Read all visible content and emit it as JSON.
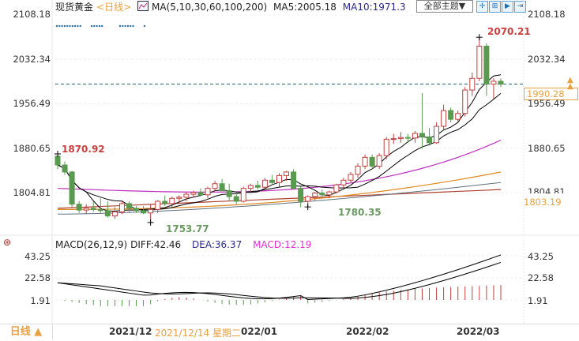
{
  "header": {
    "instrument": "现货黄金",
    "period": "<日线>",
    "ma_params": "MA(5,10,30,60,100,200)",
    "ma5": "MA5:2005.18",
    "ma10": "MA10:1971.3",
    "theme_select": "全部主题▼",
    "tools": [
      {
        "name": "crosshair-icon",
        "glyph": "✛"
      },
      {
        "name": "zoom-in-icon",
        "glyph": "⊞"
      },
      {
        "name": "zoom-out-icon",
        "glyph": "▶"
      },
      {
        "name": "move-right-icon",
        "glyph": "⇥"
      }
    ]
  },
  "main_axis": {
    "left": [
      "2108.18",
      "2032.34",
      "1956.49",
      "1880.65",
      "1804.81"
    ],
    "right": [
      "2108.18",
      "2032.34",
      "1956.49",
      "1880.65",
      "1804.81"
    ],
    "current_price": "1990.28",
    "ma_tag": "1803.19"
  },
  "annotations": {
    "high_right": "2070.21",
    "high_left": "1870.92",
    "low_1": "1753.77",
    "low_2": "1780.35"
  },
  "macd": {
    "title": "MACD(26,12,9)",
    "diff": "DIFF:42.46",
    "dea": "DEA:36.37",
    "macd": "MACD:12.19",
    "axis": [
      "43.25",
      "22.58",
      "1.91"
    ]
  },
  "bottom": {
    "period_button": "日线 ▲",
    "x_labels": [
      "2021/12",
      "2022/01",
      "2022/02",
      "2022/03"
    ],
    "cursor_label": "2021/12/14 星期二",
    "partial_label": "022/01"
  },
  "colors": {
    "up": "#c04040",
    "down": "#5a9a50",
    "ma5": "#000000",
    "ma10": "#000000",
    "ma30": "#c030c0",
    "ma60": "#e08a20",
    "ma100": "#607080",
    "ma200": "#b04030",
    "accent": "#e8a040"
  },
  "chart_data": [
    {
      "type": "candlestick",
      "title": "现货黄金 <日线>",
      "ylim": [
        1740,
        2115
      ],
      "yticks": [
        1804.81,
        1880.65,
        1956.49,
        2032.34,
        2108.18
      ],
      "x_labels": [
        "2021/12",
        "2022/01",
        "2022/02",
        "2022/03"
      ],
      "candles": [
        [
          1867,
          1870.92,
          1845,
          1852
        ],
        [
          1852,
          1858,
          1835,
          1840
        ],
        [
          1840,
          1842,
          1780,
          1785
        ],
        [
          1785,
          1790,
          1770,
          1775
        ],
        [
          1775,
          1785,
          1768,
          1778
        ],
        [
          1778,
          1790,
          1772,
          1776
        ],
        [
          1776,
          1795,
          1770,
          1774
        ],
        [
          1774,
          1790,
          1762,
          1765
        ],
        [
          1765,
          1780,
          1760,
          1772
        ],
        [
          1772,
          1790,
          1768,
          1786
        ],
        [
          1786,
          1790,
          1770,
          1778
        ],
        [
          1778,
          1782,
          1770,
          1774
        ],
        [
          1774,
          1782,
          1768,
          1770
        ],
        [
          1770,
          1784,
          1753.77,
          1776
        ],
        [
          1776,
          1792,
          1770,
          1790
        ],
        [
          1790,
          1800,
          1782,
          1786
        ],
        [
          1786,
          1798,
          1780,
          1795
        ],
        [
          1795,
          1800,
          1785,
          1797
        ],
        [
          1797,
          1806,
          1790,
          1802
        ],
        [
          1802,
          1808,
          1796,
          1805
        ],
        [
          1805,
          1812,
          1798,
          1801
        ],
        [
          1801,
          1815,
          1795,
          1812
        ],
        [
          1812,
          1825,
          1808,
          1820
        ],
        [
          1820,
          1828,
          1810,
          1808
        ],
        [
          1808,
          1820,
          1790,
          1798
        ],
        [
          1798,
          1805,
          1785,
          1790
        ],
        [
          1790,
          1815,
          1788,
          1812
        ],
        [
          1812,
          1820,
          1805,
          1817
        ],
        [
          1817,
          1825,
          1810,
          1814
        ],
        [
          1814,
          1830,
          1808,
          1826
        ],
        [
          1826,
          1835,
          1818,
          1822
        ],
        [
          1822,
          1838,
          1815,
          1834
        ],
        [
          1834,
          1842,
          1825,
          1840
        ],
        [
          1840,
          1845,
          1810,
          1812
        ],
        [
          1812,
          1815,
          1780,
          1790
        ],
        [
          1790,
          1800,
          1780.35,
          1798
        ],
        [
          1798,
          1806,
          1792,
          1804
        ],
        [
          1804,
          1810,
          1797,
          1801
        ],
        [
          1801,
          1808,
          1795,
          1806
        ],
        [
          1806,
          1820,
          1803,
          1818
        ],
        [
          1818,
          1830,
          1812,
          1826
        ],
        [
          1826,
          1840,
          1822,
          1836
        ],
        [
          1836,
          1855,
          1830,
          1850
        ],
        [
          1850,
          1870,
          1845,
          1865
        ],
        [
          1865,
          1870,
          1845,
          1850
        ],
        [
          1850,
          1872,
          1845,
          1868
        ],
        [
          1868,
          1900,
          1862,
          1896
        ],
        [
          1896,
          1905,
          1888,
          1897
        ],
        [
          1897,
          1908,
          1890,
          1899
        ],
        [
          1899,
          1905,
          1890,
          1898
        ],
        [
          1898,
          1910,
          1890,
          1906
        ],
        [
          1906,
          1975,
          1880,
          1900
        ],
        [
          1900,
          1915,
          1885,
          1890
        ],
        [
          1890,
          1925,
          1888,
          1918
        ],
        [
          1918,
          1955,
          1912,
          1945
        ],
        [
          1945,
          1950,
          1925,
          1930
        ],
        [
          1930,
          1945,
          1925,
          1940
        ],
        [
          1940,
          1985,
          1935,
          1980
        ],
        [
          1980,
          2010,
          1970,
          2000
        ],
        [
          2000,
          2070.21,
          1995,
          2055
        ],
        [
          2055,
          2060,
          1970,
          1990
        ],
        [
          1990,
          2000,
          1965,
          1995
        ],
        [
          1995,
          2000,
          1985,
          1990
        ]
      ],
      "series": [
        {
          "name": "MA5",
          "color": "#000000"
        },
        {
          "name": "MA10",
          "color": "#000000"
        },
        {
          "name": "MA30",
          "color": "#c030c0"
        },
        {
          "name": "MA60",
          "color": "#e08a20"
        },
        {
          "name": "MA100",
          "color": "#607080"
        },
        {
          "name": "MA200",
          "color": "#b04030"
        }
      ],
      "annotations": [
        {
          "text": "2070.21",
          "type": "high"
        },
        {
          "text": "1870.92",
          "type": "high"
        },
        {
          "text": "1753.77",
          "type": "low"
        },
        {
          "text": "1780.35",
          "type": "low"
        }
      ],
      "reference_line": 1990.28
    },
    {
      "type": "bar+line",
      "title": "MACD(26,12,9)",
      "ylim": [
        -12,
        48
      ],
      "yticks": [
        1.91,
        22.58,
        43.25
      ],
      "series": [
        {
          "name": "DIFF",
          "last": 42.46
        },
        {
          "name": "DEA",
          "last": 36.37
        },
        {
          "name": "MACD",
          "last": 12.19
        }
      ]
    }
  ]
}
